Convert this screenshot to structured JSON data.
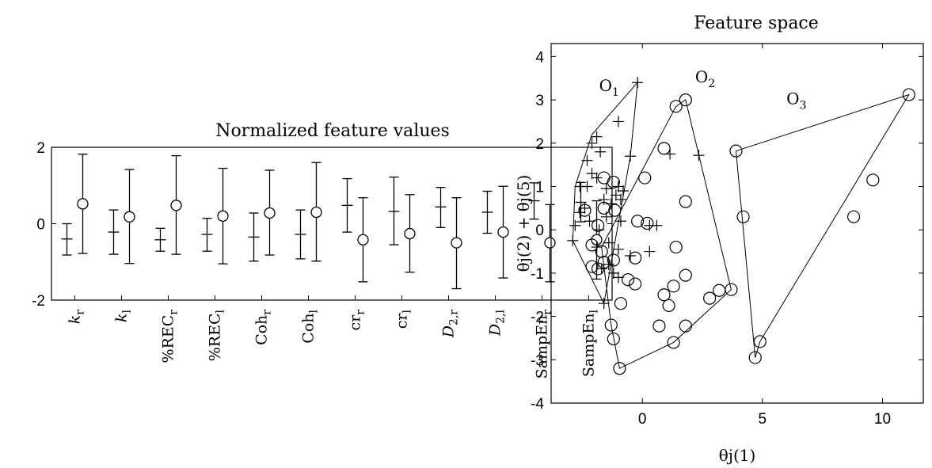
{
  "chart_data": [
    {
      "type": "errorbar",
      "title": "Normalized feature values",
      "ylim": [
        -2,
        2
      ],
      "y_ticks": [
        "-2",
        "0",
        "2"
      ],
      "categories": [
        {
          "base": "k",
          "sub": "r",
          "italic": true
        },
        {
          "base": "k",
          "sub": "l",
          "italic": true
        },
        {
          "base": "%REC",
          "sub": "r",
          "italic": false
        },
        {
          "base": "%REC",
          "sub": "l",
          "italic": false
        },
        {
          "base": "Coh",
          "sub": "r",
          "italic": false
        },
        {
          "base": "Coh",
          "sub": "l",
          "italic": false
        },
        {
          "base": "cr",
          "sub": "r",
          "italic": false
        },
        {
          "base": "cr",
          "sub": "l",
          "italic": false
        },
        {
          "base": "D",
          "sub": "2,r",
          "italic": true
        },
        {
          "base": "D",
          "sub": "2,l",
          "italic": true
        },
        {
          "base": "SampEn",
          "sub": "r",
          "italic": false
        },
        {
          "base": "SampEn",
          "sub": "l",
          "italic": false
        }
      ],
      "series": [
        {
          "marker": "plus",
          "mean": [
            -0.4,
            -0.22,
            -0.42,
            -0.28,
            -0.35,
            -0.28,
            0.48,
            0.32,
            0.44,
            0.3,
            0.6,
            0.56
          ],
          "lower": [
            -0.82,
            -0.8,
            -0.72,
            -0.72,
            -0.98,
            -0.92,
            -0.22,
            -0.55,
            -0.1,
            -0.25,
            0.12,
            0.05
          ],
          "upper": [
            0.0,
            0.36,
            -0.12,
            0.14,
            0.28,
            0.36,
            1.18,
            1.22,
            0.95,
            0.85,
            1.07,
            1.08
          ]
        },
        {
          "marker": "circle",
          "mean": [
            0.52,
            0.18,
            0.48,
            0.2,
            0.28,
            0.3,
            -0.42,
            -0.26,
            -0.5,
            -0.22,
            -0.5,
            -0.42
          ],
          "lower": [
            -0.78,
            -1.04,
            -0.8,
            -1.05,
            -0.82,
            -0.98,
            -1.52,
            -1.27,
            -1.7,
            -1.42,
            -1.52,
            -1.45
          ],
          "upper": [
            1.82,
            1.42,
            1.78,
            1.45,
            1.4,
            1.6,
            0.68,
            0.76,
            0.68,
            0.98,
            0.5,
            0.6
          ]
        }
      ]
    },
    {
      "type": "scatter",
      "title": "Feature space",
      "xlabel": "θj(1)",
      "ylabel": "θj(2) + θj(5)",
      "xlim": [
        -3.8,
        11.7
      ],
      "ylim": [
        -4,
        4.3
      ],
      "x_ticks": [
        "0",
        "5",
        "10"
      ],
      "y_ticks": [
        "-4",
        "-3",
        "-2",
        "-1",
        "0",
        "1",
        "2",
        "3",
        "4"
      ],
      "regions": [
        {
          "label": "O",
          "sub": "1",
          "label_pos": [
            -1.8,
            3.2
          ]
        },
        {
          "label": "O",
          "sub": "2",
          "label_pos": [
            2.2,
            3.4
          ]
        },
        {
          "label": "O",
          "sub": "3",
          "label_pos": [
            6.0,
            2.9
          ]
        }
      ],
      "hulls": [
        [
          [
            -0.2,
            3.4
          ],
          [
            -2.1,
            2.2
          ],
          [
            -2.8,
            1.0
          ],
          [
            -2.9,
            -0.25
          ],
          [
            -1.6,
            -1.7
          ],
          [
            -0.5,
            1.7
          ]
        ],
        [
          [
            1.8,
            3.0
          ],
          [
            3.7,
            -1.38
          ],
          [
            1.3,
            -2.6
          ],
          [
            -0.95,
            -3.2
          ],
          [
            -1.3,
            -2.2
          ],
          [
            -1.7,
            -0.4
          ],
          [
            1.4,
            2.85
          ]
        ],
        [
          [
            11.1,
            3.12
          ],
          [
            4.9,
            -2.58
          ],
          [
            4.7,
            -2.95
          ],
          [
            3.9,
            1.82
          ]
        ]
      ],
      "plus_points": [
        [
          -0.2,
          3.4
        ],
        [
          -1.0,
          2.5
        ],
        [
          -1.9,
          2.15
        ],
        [
          -2.1,
          2.0
        ],
        [
          -1.75,
          1.8
        ],
        [
          -2.3,
          1.6
        ],
        [
          -0.5,
          1.7
        ],
        [
          1.15,
          1.75
        ],
        [
          2.35,
          1.72
        ],
        [
          -2.1,
          1.3
        ],
        [
          -1.9,
          1.2
        ],
        [
          -2.6,
          1.0
        ],
        [
          -2.3,
          1.0
        ],
        [
          -1.0,
          1.0
        ],
        [
          -1.5,
          0.95
        ],
        [
          -0.8,
          0.9
        ],
        [
          -1.1,
          0.8
        ],
        [
          -0.9,
          0.7
        ],
        [
          -1.6,
          0.7
        ],
        [
          -1.3,
          0.6
        ],
        [
          -2.4,
          0.5
        ],
        [
          -2.6,
          0.4
        ],
        [
          -2.2,
          0.2
        ],
        [
          -1.5,
          0.3
        ],
        [
          -0.9,
          0.2
        ],
        [
          -2.8,
          0.1
        ],
        [
          -1.8,
          0.0
        ],
        [
          0.3,
          0.1
        ],
        [
          0.6,
          0.1
        ],
        [
          -2.9,
          -0.25
        ],
        [
          -1.4,
          -0.3
        ],
        [
          -1.9,
          -0.4
        ],
        [
          -1.0,
          -0.45
        ],
        [
          0.3,
          -0.5
        ],
        [
          -0.5,
          -0.6
        ],
        [
          -1.4,
          -0.8
        ],
        [
          -1.7,
          -0.9
        ],
        [
          -1.2,
          -1.0
        ],
        [
          -1.0,
          -1.1
        ],
        [
          -1.6,
          -1.7
        ]
      ],
      "circle_points": [
        [
          1.8,
          3.0
        ],
        [
          1.4,
          2.85
        ],
        [
          11.1,
          3.12
        ],
        [
          0.9,
          1.88
        ],
        [
          3.9,
          1.82
        ],
        [
          0.1,
          1.2
        ],
        [
          -1.6,
          1.2
        ],
        [
          -1.2,
          1.1
        ],
        [
          1.8,
          0.65
        ],
        [
          9.6,
          1.15
        ],
        [
          -2.4,
          0.45
        ],
        [
          -1.6,
          0.5
        ],
        [
          -1.15,
          0.45
        ],
        [
          4.2,
          0.3
        ],
        [
          8.8,
          0.3
        ],
        [
          -0.2,
          0.2
        ],
        [
          0.2,
          0.15
        ],
        [
          -1.85,
          0.1
        ],
        [
          -2.1,
          -0.35
        ],
        [
          -1.7,
          -0.5
        ],
        [
          1.4,
          -0.4
        ],
        [
          -0.3,
          -0.65
        ],
        [
          -1.2,
          -0.7
        ],
        [
          -1.6,
          -0.75
        ],
        [
          -2.1,
          -0.85
        ],
        [
          -1.85,
          -0.9
        ],
        [
          -0.6,
          -1.15
        ],
        [
          -0.3,
          -1.25
        ],
        [
          1.3,
          -1.3
        ],
        [
          0.9,
          -1.5
        ],
        [
          1.8,
          -1.05
        ],
        [
          3.2,
          -1.4
        ],
        [
          3.7,
          -1.38
        ],
        [
          2.8,
          -1.58
        ],
        [
          1.1,
          -1.75
        ],
        [
          -0.9,
          -1.7
        ],
        [
          -1.3,
          -2.2
        ],
        [
          0.7,
          -2.22
        ],
        [
          1.8,
          -2.22
        ],
        [
          -1.2,
          -2.52
        ],
        [
          1.3,
          -2.6
        ],
        [
          4.9,
          -2.58
        ],
        [
          4.7,
          -2.95
        ],
        [
          -0.95,
          -3.2
        ]
      ]
    }
  ]
}
